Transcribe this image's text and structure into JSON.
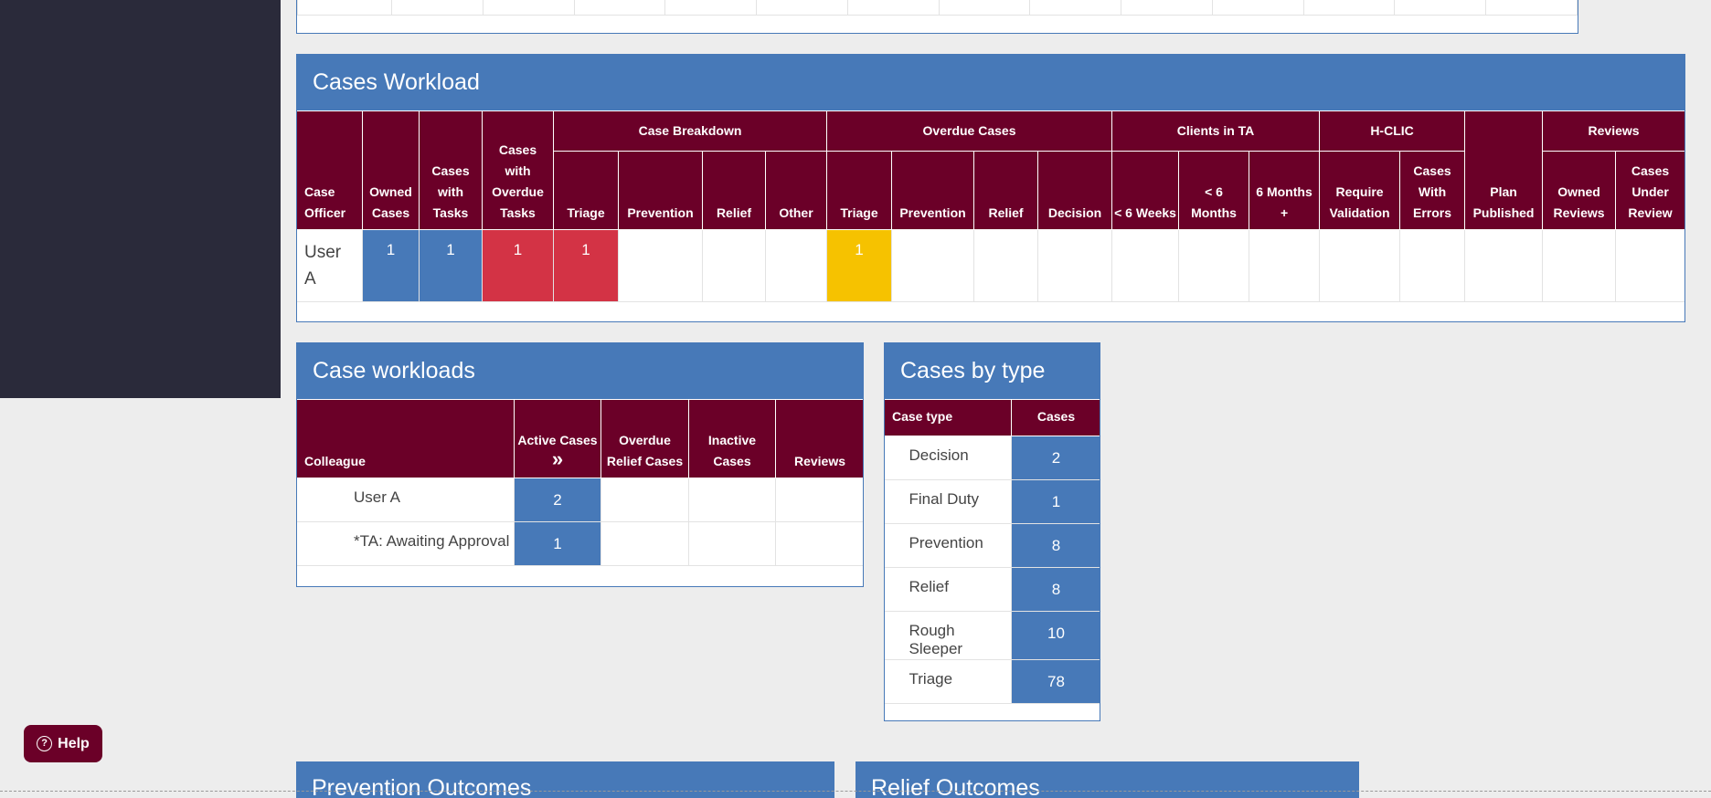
{
  "workload": {
    "title": "Cases Workload",
    "groups": {
      "case_breakdown": "Case Breakdown",
      "overdue_cases": "Overdue Cases",
      "clients_in_ta": "Clients in TA",
      "hclic": "H-CLIC",
      "reviews": "Reviews"
    },
    "columns": {
      "case_officer": "Case Officer",
      "owned_cases": "Owned Cases",
      "cases_with_tasks": "Cases with Tasks",
      "cases_with_overdue_tasks": "Cases with Overdue Tasks",
      "cb_triage": "Triage",
      "cb_prevention": "Prevention",
      "cb_relief": "Relief",
      "cb_other": "Other",
      "od_triage": "Triage",
      "od_prevention": "Prevention",
      "od_relief": "Relief",
      "od_decision": "Decision",
      "ta_6weeks": "< 6 Weeks",
      "ta_6months": "< 6 Months",
      "ta_6months_plus": "6 Months +",
      "require_validation": "Require Validation",
      "cases_with_errors": "Cases With Errors",
      "plan_published": "Plan Published",
      "owned_reviews": "Owned Reviews",
      "cases_under_review": "Cases Under Review"
    },
    "row": {
      "officer": "User A",
      "owned_cases": "1",
      "cases_with_tasks": "1",
      "cases_with_overdue_tasks": "1",
      "cb_triage": "1",
      "od_triage": "1"
    }
  },
  "case_workloads": {
    "title": "Case workloads",
    "columns": {
      "colleague": "Colleague",
      "active_cases": "Active Cases",
      "overdue_relief": "Overdue Relief Cases",
      "inactive_cases": "Inactive Cases",
      "reviews": "Reviews"
    },
    "rows": [
      {
        "name": "User A",
        "active": "2"
      },
      {
        "name": "*TA: Awaiting Approval",
        "active": "1"
      }
    ]
  },
  "cases_by_type": {
    "title": "Cases by type",
    "columns": {
      "case_type": "Case type",
      "cases": "Cases"
    },
    "rows": [
      {
        "type": "Decision",
        "count": "2"
      },
      {
        "type": "Final Duty",
        "count": "1"
      },
      {
        "type": "Prevention",
        "count": "8"
      },
      {
        "type": "Relief",
        "count": "8"
      },
      {
        "type": "Rough Sleeper",
        "count": "10"
      },
      {
        "type": "Triage",
        "count": "78"
      }
    ]
  },
  "bottom_panels": {
    "prevention_outcomes": "Prevention Outcomes",
    "relief_outcomes": "Relief Outcomes"
  },
  "help": {
    "label": "Help"
  },
  "colors": {
    "header_blue": "#4779b8",
    "maroon": "#6b0028",
    "red": "#d33345",
    "yellow": "#f6c200",
    "sidebar": "#2a2a3a"
  }
}
